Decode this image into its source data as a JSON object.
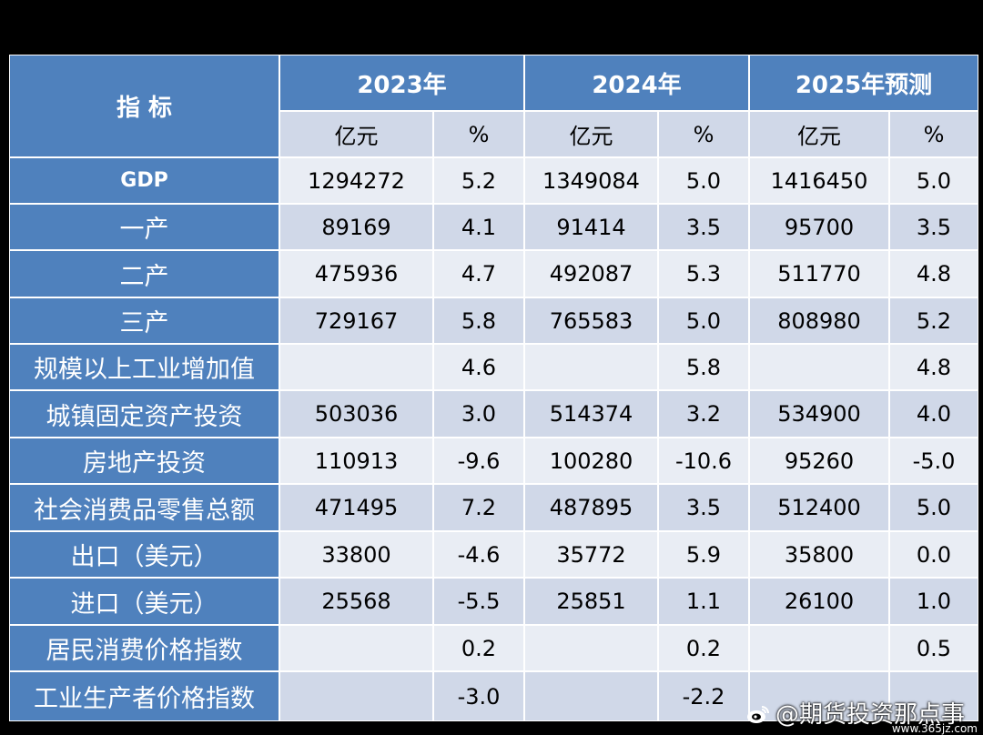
{
  "header": {
    "indicator_label": "指 标",
    "years": [
      "2023年",
      "2024年",
      "2025年预测"
    ],
    "units": [
      "亿元",
      "%",
      "亿元",
      "%",
      "亿元",
      "%"
    ]
  },
  "rows": [
    {
      "label": "GDP",
      "values": [
        "1294272",
        "5.2",
        "1349084",
        "5.0",
        "1416450",
        "5.0"
      ]
    },
    {
      "label": "一产",
      "values": [
        "89169",
        "4.1",
        "91414",
        "3.5",
        "95700",
        "3.5"
      ]
    },
    {
      "label": "二产",
      "values": [
        "475936",
        "4.7",
        "492087",
        "5.3",
        "511770",
        "4.8"
      ]
    },
    {
      "label": "三产",
      "values": [
        "729167",
        "5.8",
        "765583",
        "5.0",
        "808980",
        "5.2"
      ]
    },
    {
      "label": "规模以上工业增加值",
      "values": [
        "",
        "4.6",
        "",
        "5.8",
        "",
        "4.8"
      ]
    },
    {
      "label": "城镇固定资产投资",
      "values": [
        "503036",
        "3.0",
        "514374",
        "3.2",
        "534900",
        "4.0"
      ]
    },
    {
      "label": "房地产投资",
      "values": [
        "110913",
        "-9.6",
        "100280",
        "-10.6",
        "95260",
        "-5.0"
      ]
    },
    {
      "label": "社会消费品零售总额",
      "values": [
        "471495",
        "7.2",
        "487895",
        "3.5",
        "512400",
        "5.0"
      ]
    },
    {
      "label": "出口（美元）",
      "values": [
        "33800",
        "-4.6",
        "35772",
        "5.9",
        "35800",
        "0.0"
      ]
    },
    {
      "label": "进口（美元）",
      "values": [
        "25568",
        "-5.5",
        "25851",
        "1.1",
        "26100",
        "1.0"
      ]
    },
    {
      "label": "居民消费价格指数",
      "values": [
        "",
        "0.2",
        "",
        "0.2",
        "",
        "0.5"
      ]
    },
    {
      "label": "工业生产者价格指数",
      "values": [
        "",
        "-3.0",
        "",
        "-2.2",
        "",
        ""
      ]
    }
  ],
  "watermark": {
    "text": "@期货投资那点事",
    "site": "www.365jz.com",
    "icon": "weibo-icon"
  }
}
